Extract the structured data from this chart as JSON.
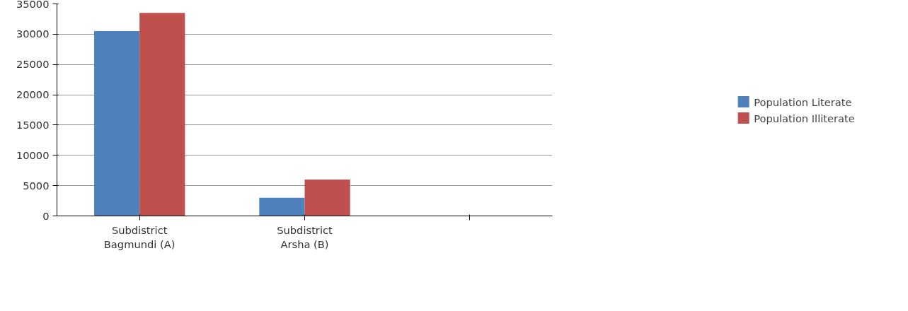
{
  "chart_data": {
    "type": "bar",
    "categories": [
      "Subdistrict Bagmundi (A)",
      "Subdistrict Arsha (B)",
      null
    ],
    "series": [
      {
        "name": "Population Literate",
        "color": "#4f81bd",
        "values": [
          30500,
          3000,
          null
        ]
      },
      {
        "name": "Population Illiterate",
        "color": "#c0504d",
        "values": [
          33500,
          6000,
          null
        ]
      }
    ],
    "ylim": [
      0,
      35000
    ],
    "yticks": [
      0,
      5000,
      10000,
      15000,
      20000,
      25000,
      30000,
      35000
    ],
    "grid": "y",
    "legend": "right"
  }
}
